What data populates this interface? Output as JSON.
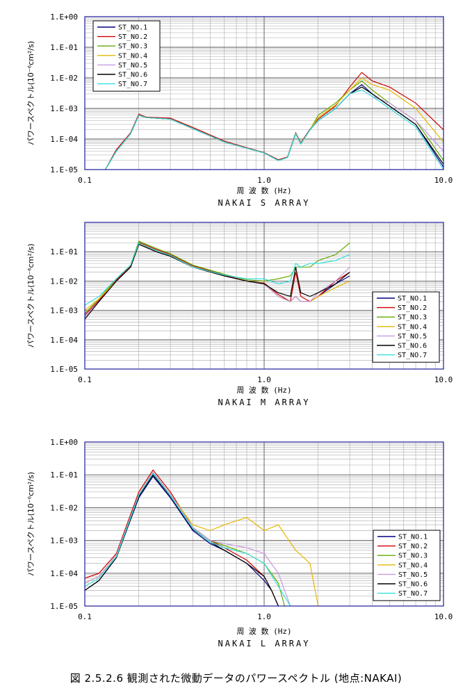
{
  "figure": {
    "caption": "図 2.5.2.6  観測された微動データのパワースペクトル (地点:NAKAI)",
    "series_colors": [
      "#000080",
      "#cc0000",
      "#66aa00",
      "#e6b800",
      "#c79ae0",
      "#000000",
      "#33e0e0"
    ]
  },
  "chart_data": [
    {
      "type": "line",
      "title": "NAKAI  S ARRAY",
      "xlabel": "周 波 数 (Hz)",
      "ylabel": "パワースペクトル",
      "ylabel_unit": "(10⁻⁶cm²/s)",
      "x_scale": "log",
      "y_scale": "log",
      "xlim": [
        0.1,
        10.0
      ],
      "ylim": [
        1e-05,
        1
      ],
      "x_ticks": [
        "0.1",
        "1.0",
        "10.0"
      ],
      "y_ticks": [
        "1.E-05",
        "1.E-04",
        "1.E-03",
        "1.E-02",
        "1.E-01",
        "1.E+00"
      ],
      "grid": true,
      "legend_position": "top-left",
      "series": [
        {
          "name": "ST_NO.1",
          "x": [
            0.13,
            0.15,
            0.18,
            0.2,
            0.22,
            0.3,
            0.4,
            0.6,
            0.8,
            1.0,
            1.2,
            1.35,
            1.5,
            1.6,
            1.8,
            2.0,
            2.5,
            3.0,
            3.5,
            4.0,
            5.0,
            7.0,
            10.0
          ],
          "y": [
            1e-05,
            4e-05,
            0.00015,
            0.0006,
            0.0005,
            0.00045,
            0.00022,
            8e-05,
            5e-05,
            3.5e-05,
            2e-05,
            2.5e-05,
            0.00015,
            7e-05,
            0.0002,
            0.0004,
            0.001,
            0.003,
            0.006,
            0.003,
            0.0012,
            0.0003,
            1.2e-05
          ]
        },
        {
          "name": "ST_NO.2",
          "x": [
            0.13,
            0.15,
            0.18,
            0.2,
            0.22,
            0.3,
            0.4,
            0.6,
            0.8,
            1.0,
            1.2,
            1.35,
            1.5,
            1.6,
            1.8,
            2.0,
            2.5,
            3.0,
            3.5,
            4.0,
            5.0,
            7.0,
            10.0
          ],
          "y": [
            1e-05,
            4.5e-05,
            0.00016,
            0.00065,
            0.00052,
            0.00048,
            0.00024,
            8.5e-05,
            5.2e-05,
            3.6e-05,
            2.1e-05,
            2.6e-05,
            0.00016,
            7.5e-05,
            0.00021,
            0.00045,
            0.0012,
            0.005,
            0.015,
            0.008,
            0.005,
            0.0015,
            0.0002
          ]
        },
        {
          "name": "ST_NO.3",
          "x": [
            0.13,
            0.15,
            0.18,
            0.2,
            0.22,
            0.3,
            0.4,
            0.6,
            0.8,
            1.0,
            1.2,
            1.35,
            1.5,
            1.6,
            1.8,
            2.0,
            2.5,
            3.0,
            3.5,
            4.0,
            5.0,
            7.0,
            10.0
          ],
          "y": [
            1e-05,
            4e-05,
            0.00015,
            0.0006,
            0.0005,
            0.00045,
            0.00022,
            8e-05,
            5e-05,
            3.5e-05,
            2e-05,
            2.5e-05,
            0.00015,
            7e-05,
            0.0002,
            0.0006,
            0.0015,
            0.004,
            0.008,
            0.004,
            0.0015,
            0.0004,
            2e-05
          ]
        },
        {
          "name": "ST_NO.4",
          "x": [
            0.13,
            0.15,
            0.18,
            0.2,
            0.22,
            0.3,
            0.4,
            0.6,
            0.8,
            1.0,
            1.2,
            1.35,
            1.5,
            1.6,
            1.8,
            2.0,
            2.5,
            3.0,
            3.5,
            4.0,
            5.0,
            7.0,
            10.0
          ],
          "y": [
            1e-05,
            4e-05,
            0.00015,
            0.0006,
            0.0005,
            0.00045,
            0.00022,
            8e-05,
            5e-05,
            3.5e-05,
            2e-05,
            2.5e-05,
            0.00015,
            7e-05,
            0.0002,
            0.0005,
            0.0013,
            0.004,
            0.01,
            0.006,
            0.004,
            0.001,
            8e-05
          ]
        },
        {
          "name": "ST_NO.5",
          "x": [
            0.13,
            0.15,
            0.18,
            0.2,
            0.22,
            0.3,
            0.4,
            0.6,
            0.8,
            1.0,
            1.2,
            1.35,
            1.5,
            1.6,
            1.8,
            2.0,
            2.5,
            3.0,
            3.5,
            4.0,
            5.0,
            7.0,
            10.0
          ],
          "y": [
            1e-05,
            4e-05,
            0.00015,
            0.0006,
            0.0005,
            0.00045,
            0.00022,
            8e-05,
            5e-05,
            3.5e-05,
            2e-05,
            2.5e-05,
            0.00015,
            7e-05,
            0.0002,
            0.0004,
            0.001,
            0.003,
            0.004,
            0.0025,
            0.0015,
            0.0004,
            4e-05
          ]
        },
        {
          "name": "ST_NO.6",
          "x": [
            0.13,
            0.15,
            0.18,
            0.2,
            0.22,
            0.3,
            0.4,
            0.6,
            0.8,
            1.0,
            1.2,
            1.35,
            1.5,
            1.6,
            1.8,
            2.0,
            2.5,
            3.0,
            3.5,
            4.0,
            5.0,
            7.0,
            10.0
          ],
          "y": [
            1e-05,
            4e-05,
            0.00015,
            0.0006,
            0.0005,
            0.00045,
            0.00022,
            8e-05,
            5e-05,
            3.5e-05,
            2e-05,
            2.5e-05,
            0.00015,
            7e-05,
            0.0002,
            0.0004,
            0.001,
            0.003,
            0.005,
            0.003,
            0.0012,
            0.0003,
            1.5e-05
          ]
        },
        {
          "name": "ST_NO.7",
          "x": [
            0.13,
            0.15,
            0.18,
            0.2,
            0.22,
            0.3,
            0.4,
            0.6,
            0.8,
            1.0,
            1.2,
            1.35,
            1.5,
            1.6,
            1.8,
            2.0,
            2.5,
            3.0,
            3.5,
            4.0,
            5.0,
            7.0,
            10.0
          ],
          "y": [
            1e-05,
            4e-05,
            0.00015,
            0.0006,
            0.0005,
            0.00045,
            0.00022,
            8e-05,
            5e-05,
            3.5e-05,
            2e-05,
            2.5e-05,
            0.00015,
            7e-05,
            0.0002,
            0.0004,
            0.001,
            0.003,
            0.004,
            0.0025,
            0.001,
            0.00025,
            1e-05
          ]
        }
      ]
    },
    {
      "type": "line",
      "title": "NAKAI  M ARRAY",
      "xlabel": "周 波 数 (Hz)",
      "ylabel": "パワースペクトル",
      "ylabel_unit": "(10⁻⁶cm²/s)",
      "x_scale": "log",
      "y_scale": "log",
      "xlim": [
        0.1,
        10.0
      ],
      "ylim": [
        1e-05,
        1
      ],
      "x_ticks": [
        "0.1",
        "1.0",
        "10.0"
      ],
      "y_ticks": [
        "1.E-05",
        "1.E-04",
        "1.E-03",
        "1.E-02",
        "1.E-01"
      ],
      "grid": true,
      "legend_position": "bottom-right",
      "series": [
        {
          "name": "ST_NO.1",
          "x": [
            0.1,
            0.12,
            0.15,
            0.18,
            0.2,
            0.25,
            0.3,
            0.4,
            0.6,
            0.8,
            1.0,
            1.2,
            1.4,
            1.5,
            1.6,
            1.8,
            2.0,
            2.5,
            3.0
          ],
          "y": [
            0.0006,
            0.002,
            0.01,
            0.03,
            0.18,
            0.1,
            0.07,
            0.03,
            0.015,
            0.01,
            0.008,
            0.003,
            0.002,
            0.003,
            0.002,
            0.002,
            0.003,
            0.008,
            0.015
          ]
        },
        {
          "name": "ST_NO.2",
          "x": [
            0.1,
            0.12,
            0.15,
            0.18,
            0.2,
            0.25,
            0.3,
            0.4,
            0.6,
            0.8,
            1.0,
            1.2,
            1.4,
            1.5,
            1.6,
            1.8,
            2.0,
            2.5,
            3.0
          ],
          "y": [
            0.0007,
            0.0022,
            0.011,
            0.032,
            0.21,
            0.12,
            0.08,
            0.033,
            0.016,
            0.01,
            0.0085,
            0.0035,
            0.002,
            0.02,
            0.003,
            0.002,
            0.003,
            0.01,
            0.02
          ]
        },
        {
          "name": "ST_NO.3",
          "x": [
            0.1,
            0.12,
            0.15,
            0.18,
            0.2,
            0.25,
            0.3,
            0.4,
            0.6,
            0.8,
            1.0,
            1.2,
            1.4,
            1.5,
            1.6,
            1.8,
            2.0,
            2.5,
            3.0
          ],
          "y": [
            0.0008,
            0.0025,
            0.012,
            0.035,
            0.23,
            0.13,
            0.085,
            0.035,
            0.017,
            0.011,
            0.01,
            0.012,
            0.015,
            0.03,
            0.03,
            0.03,
            0.05,
            0.08,
            0.2
          ]
        },
        {
          "name": "ST_NO.4",
          "x": [
            0.1,
            0.12,
            0.15,
            0.18,
            0.2,
            0.25,
            0.3,
            0.4,
            0.6,
            0.8,
            1.0,
            1.2,
            1.4,
            1.5,
            1.6,
            1.8,
            2.0,
            2.5,
            3.0
          ],
          "y": [
            0.001,
            0.0025,
            0.01,
            0.03,
            0.19,
            0.11,
            0.075,
            0.03,
            0.015,
            0.01,
            0.008,
            0.003,
            0.002,
            0.003,
            0.002,
            0.002,
            0.003,
            0.006,
            0.01
          ]
        },
        {
          "name": "ST_NO.5",
          "x": [
            0.1,
            0.12,
            0.15,
            0.18,
            0.2,
            0.25,
            0.3,
            0.4,
            0.6,
            0.8,
            1.0,
            1.2,
            1.4,
            1.5,
            1.6,
            1.8,
            2.0,
            2.5,
            3.0
          ],
          "y": [
            0.0006,
            0.002,
            0.01,
            0.03,
            0.18,
            0.1,
            0.07,
            0.03,
            0.015,
            0.01,
            0.008,
            0.003,
            0.002,
            0.003,
            0.002,
            0.002,
            0.004,
            0.01,
            0.03
          ]
        },
        {
          "name": "ST_NO.6",
          "x": [
            0.1,
            0.12,
            0.15,
            0.18,
            0.2,
            0.25,
            0.3,
            0.4,
            0.6,
            0.8,
            1.0,
            1.2,
            1.4,
            1.5,
            1.6,
            1.8,
            2.0,
            2.5,
            3.0
          ],
          "y": [
            0.0005,
            0.002,
            0.01,
            0.03,
            0.18,
            0.1,
            0.07,
            0.03,
            0.015,
            0.01,
            0.008,
            0.004,
            0.003,
            0.03,
            0.004,
            0.003,
            0.004,
            0.008,
            0.02
          ]
        },
        {
          "name": "ST_NO.7",
          "x": [
            0.1,
            0.12,
            0.15,
            0.18,
            0.2,
            0.25,
            0.3,
            0.4,
            0.6,
            0.8,
            1.0,
            1.2,
            1.4,
            1.5,
            1.6,
            1.8,
            2.0,
            2.5,
            3.0
          ],
          "y": [
            0.0015,
            0.003,
            0.012,
            0.035,
            0.2,
            0.11,
            0.075,
            0.03,
            0.016,
            0.012,
            0.012,
            0.008,
            0.01,
            0.04,
            0.03,
            0.04,
            0.04,
            0.05,
            0.08
          ]
        }
      ]
    },
    {
      "type": "line",
      "title": "NAKAI  L ARRAY",
      "xlabel": "周 波 数 (Hz)",
      "ylabel": "パワースペクトル",
      "ylabel_unit": "(10⁻⁶cm²/s)",
      "x_scale": "log",
      "y_scale": "log",
      "xlim": [
        0.1,
        10.0
      ],
      "ylim": [
        1e-05,
        1
      ],
      "x_ticks": [
        "0.1",
        "1.0",
        "10.0"
      ],
      "y_ticks": [
        "1.E-05",
        "1.E-04",
        "1.E-03",
        "1.E-02",
        "1.E-01",
        "1.E+00"
      ],
      "grid": true,
      "legend_position": "bottom-right",
      "series": [
        {
          "name": "ST_NO.1",
          "x": [
            0.1,
            0.12,
            0.15,
            0.2,
            0.24,
            0.3,
            0.4,
            0.5,
            0.6,
            0.8,
            1.0,
            1.1,
            1.2
          ],
          "y": [
            3e-05,
            6e-05,
            0.0003,
            0.02,
            0.09,
            0.02,
            0.002,
            0.0008,
            0.0005,
            0.0002,
            6e-05,
            3e-05,
            1e-05
          ]
        },
        {
          "name": "ST_NO.2",
          "x": [
            0.1,
            0.12,
            0.15,
            0.2,
            0.24,
            0.3,
            0.4,
            0.5,
            0.6,
            0.8,
            1.0,
            1.1,
            1.2
          ],
          "y": [
            7e-05,
            0.0001,
            0.0004,
            0.03,
            0.14,
            0.03,
            0.0025,
            0.001,
            0.0006,
            0.00025,
            8e-05,
            3e-05,
            1e-05
          ]
        },
        {
          "name": "ST_NO.3",
          "x": [
            0.1,
            0.12,
            0.15,
            0.2,
            0.24,
            0.3,
            0.4,
            0.5,
            0.6,
            0.8,
            1.0,
            1.2,
            1.3
          ],
          "y": [
            5e-05,
            8e-05,
            0.00035,
            0.025,
            0.12,
            0.025,
            0.0025,
            0.001,
            0.0007,
            0.0004,
            0.0002,
            5e-05,
            1e-05
          ]
        },
        {
          "name": "ST_NO.4",
          "x": [
            0.1,
            0.12,
            0.15,
            0.2,
            0.24,
            0.3,
            0.4,
            0.5,
            0.6,
            0.8,
            1.0,
            1.2,
            1.5,
            1.8,
            2.0
          ],
          "y": [
            5e-05,
            8e-05,
            0.00035,
            0.025,
            0.12,
            0.025,
            0.003,
            0.002,
            0.003,
            0.005,
            0.002,
            0.003,
            0.0005,
            0.0002,
            1e-05
          ]
        },
        {
          "name": "ST_NO.5",
          "x": [
            0.1,
            0.12,
            0.15,
            0.2,
            0.24,
            0.3,
            0.4,
            0.5,
            0.6,
            0.8,
            1.0,
            1.2,
            1.4
          ],
          "y": [
            5e-05,
            8e-05,
            0.00035,
            0.025,
            0.12,
            0.025,
            0.0025,
            0.001,
            0.0008,
            0.0006,
            0.0004,
            0.0001,
            1e-05
          ]
        },
        {
          "name": "ST_NO.6",
          "x": [
            0.1,
            0.12,
            0.15,
            0.2,
            0.24,
            0.3,
            0.4,
            0.5,
            0.6,
            0.8,
            1.0,
            1.1,
            1.2
          ],
          "y": [
            3e-05,
            6e-05,
            0.0003,
            0.022,
            0.1,
            0.022,
            0.0022,
            0.0009,
            0.0005,
            0.0002,
            8e-05,
            3e-05,
            1e-05
          ]
        },
        {
          "name": "ST_NO.7",
          "x": [
            0.1,
            0.12,
            0.15,
            0.2,
            0.24,
            0.3,
            0.4,
            0.5,
            0.6,
            0.8,
            1.0,
            1.2,
            1.4
          ],
          "y": [
            4e-05,
            7e-05,
            0.00032,
            0.024,
            0.11,
            0.023,
            0.0023,
            0.0009,
            0.0006,
            0.0004,
            0.0002,
            4e-05,
            1e-05
          ]
        }
      ]
    }
  ]
}
